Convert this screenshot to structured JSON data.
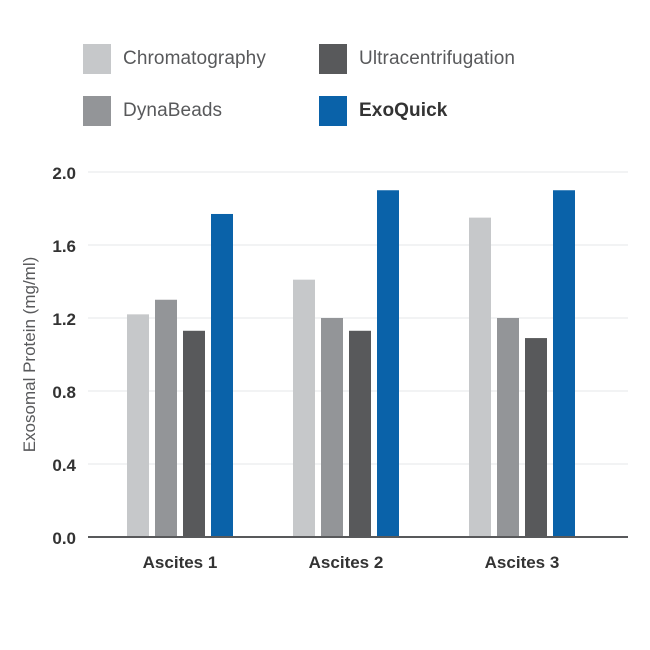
{
  "chart_data": {
    "type": "bar",
    "categories": [
      "Ascites 1",
      "Ascites 2",
      "Ascites 3"
    ],
    "series": [
      {
        "name": "Chromatography",
        "color": "#c6c8ca",
        "values": [
          1.22,
          1.41,
          1.75
        ]
      },
      {
        "name": "DynaBeads",
        "color": "#939598",
        "values": [
          1.3,
          1.2,
          1.2
        ]
      },
      {
        "name": "Ultracentrifugation",
        "color": "#58595b",
        "values": [
          1.13,
          1.13,
          1.09
        ]
      },
      {
        "name": "ExoQuick",
        "color": "#0a62a9",
        "values": [
          1.77,
          1.9,
          1.9
        ]
      }
    ],
    "title": "",
    "xlabel": "",
    "ylabel": "Exosomal Protein (mg/ml)",
    "ylim": [
      0,
      2.0
    ],
    "yticks": [
      "0.0",
      "0.4",
      "0.8",
      "1.2",
      "1.6",
      "2.0"
    ],
    "grid": true,
    "legend_position": "top"
  }
}
